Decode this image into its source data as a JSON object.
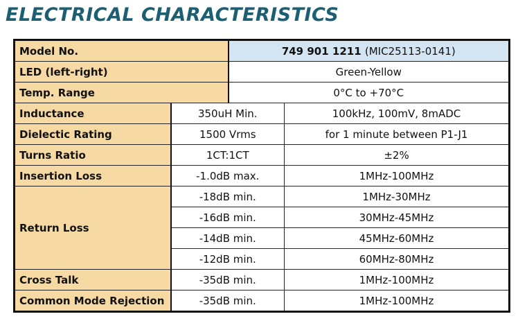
{
  "title": "ELECTRICAL CHARACTERISTICS",
  "model": {
    "label": "Model No.",
    "part_number": "749 901 1211",
    "alt_number": "(MIC25113-0141)"
  },
  "led": {
    "label": "LED (left-right)",
    "value": "Green-Yellow"
  },
  "temp": {
    "label": "Temp. Range",
    "value": "0°C to +70°C"
  },
  "rows": {
    "inductance": {
      "label": "Inductance",
      "value": "350uH Min.",
      "condition": "100kHz, 100mV, 8mADC"
    },
    "dielectric": {
      "label": "Dielectic Rating",
      "value": "1500 Vrms",
      "condition": "for 1 minute between P1-J1"
    },
    "turns": {
      "label": "Turns Ratio",
      "value": "1CT:1CT",
      "condition": "±2%"
    },
    "insertion": {
      "label": "Insertion Loss",
      "value": "-1.0dB max.",
      "condition": "1MHz-100MHz"
    },
    "return_loss": {
      "label": "Return Loss",
      "entries": [
        {
          "value": "-18dB min.",
          "condition": "1MHz-30MHz"
        },
        {
          "value": "-16dB min.",
          "condition": "30MHz-45MHz"
        },
        {
          "value": "-14dB min.",
          "condition": "45MHz-60MHz"
        },
        {
          "value": "-12dB min.",
          "condition": "60MHz-80MHz"
        }
      ]
    },
    "cross_talk": {
      "label": "Cross Talk",
      "value": "-35dB min.",
      "condition": "1MHz-100MHz"
    },
    "cmr": {
      "label": "Common Mode Rejection",
      "value": "-35dB min.",
      "condition": "1MHz-100MHz"
    }
  },
  "colors": {
    "label_bg": "#f7d9a4",
    "model_bg": "#d3e4f3",
    "title": "#1c5f73"
  }
}
